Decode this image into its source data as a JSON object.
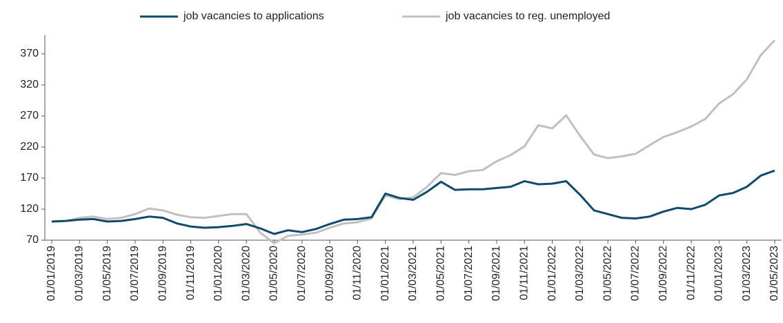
{
  "chart_data": {
    "type": "line",
    "categories": [
      "01/01/2019",
      null,
      "01/03/2019",
      null,
      "01/05/2019",
      null,
      "01/07/2019",
      null,
      "01/09/2019",
      null,
      "01/11/2019",
      null,
      "01/01/2020",
      null,
      "01/03/2020",
      null,
      "01/05/2020",
      null,
      "01/07/2020",
      null,
      "01/09/2020",
      null,
      "01/11/2020",
      null,
      "01/01/2021",
      null,
      "01/03/2021",
      null,
      "01/05/2021",
      null,
      "01/07/2021",
      null,
      "01/09/2021",
      null,
      "01/11/2021",
      null,
      "01/01/2022",
      null,
      "01/03/2022",
      null,
      "01/05/2022",
      null,
      "01/07/2022",
      null,
      "01/09/2022",
      null,
      "01/11/2022",
      null,
      "01/01/2023",
      null,
      "01/03/2023",
      null,
      "01/05/2023"
    ],
    "series": [
      {
        "name": "job vacancies to applications",
        "color": "#0d4a6b",
        "values": [
          100,
          101,
          103,
          104,
          100,
          101,
          104,
          108,
          106,
          97,
          92,
          90,
          91,
          93,
          96,
          89,
          80,
          86,
          83,
          88,
          96,
          103,
          104,
          107,
          145,
          138,
          135,
          148,
          164,
          151,
          152,
          152,
          154,
          156,
          165,
          160,
          161,
          165,
          143,
          118,
          112,
          106,
          105,
          108,
          116,
          122,
          120,
          127,
          142,
          146,
          156,
          174,
          182
        ]
      },
      {
        "name": "job vacancies to reg. unemployed",
        "color": "#c0c0c0",
        "values": [
          100,
          101,
          106,
          108,
          104,
          106,
          112,
          121,
          118,
          111,
          107,
          106,
          109,
          112,
          112,
          82,
          65,
          77,
          79,
          82,
          90,
          97,
          99,
          105,
          142,
          136,
          139,
          156,
          178,
          175,
          181,
          183,
          197,
          207,
          221,
          255,
          250,
          271,
          238,
          208,
          202,
          205,
          209,
          223,
          236,
          244,
          253,
          265,
          290,
          305,
          329,
          368,
          392
        ]
      }
    ],
    "ylim": [
      70,
      400
    ],
    "yticks": [
      70,
      120,
      170,
      220,
      270,
      320,
      370
    ],
    "legend": "top"
  }
}
